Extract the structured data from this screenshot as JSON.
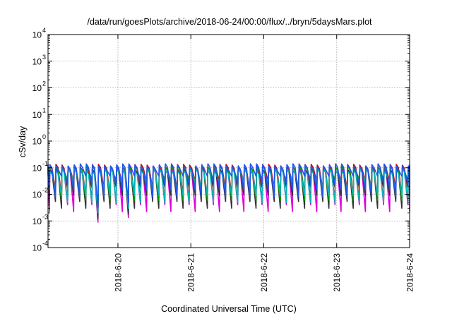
{
  "chart_data": {
    "type": "line",
    "title": "/data/run/goesPlots/archive/2018-06-24/00:00/flux/../bryn/5daysMars.plot",
    "xlabel": "Coordinated Universal Time (UTC)",
    "ylabel": "cSv/day",
    "yscale": "log",
    "ylim": [
      0.0001,
      10000
    ],
    "y_ticks": [
      {
        "base": "10",
        "exp": "-4",
        "value": 0.0001
      },
      {
        "base": "10",
        "exp": "-3",
        "value": 0.001
      },
      {
        "base": "10",
        "exp": "-2",
        "value": 0.01
      },
      {
        "base": "10",
        "exp": "-1",
        "value": 0.1
      },
      {
        "base": "10",
        "exp": "0",
        "value": 1
      },
      {
        "base": "10",
        "exp": "1",
        "value": 10
      },
      {
        "base": "10",
        "exp": "2",
        "value": 100
      },
      {
        "base": "10",
        "exp": "3",
        "value": 1000
      },
      {
        "base": "10",
        "exp": "4",
        "value": 10000
      }
    ],
    "xlim": [
      "2018-06-19 01:00",
      "2018-06-24 00:00"
    ],
    "x_ticks": [
      "2018-6-20",
      "2018-6-21",
      "2018-6-22",
      "2018-6-23",
      "2018-6-24"
    ],
    "grid": true,
    "legend": "none",
    "sawtooth": {
      "cycles_per_day": 12,
      "peak": 0.12,
      "troughs": [
        0.03,
        0.015,
        0.009,
        0.005
      ],
      "dip_times": [
        "2018-06-19 17:45",
        "2018-06-20 02:45"
      ],
      "dip_troughs": [
        0.002,
        0.003
      ]
    },
    "series": [
      {
        "color": "#cc0000",
        "peak_factor": 1.0,
        "trough_factor": 1.0
      },
      {
        "color": "#00a000",
        "peak_factor": 0.85,
        "trough_factor": 1.2
      },
      {
        "color": "#2255ee",
        "peak_factor": 1.05,
        "trough_factor": 1.6
      },
      {
        "color": "#dd00dd",
        "peak_factor": 0.8,
        "trough_factor": 0.45
      },
      {
        "color": "#00b8b8",
        "peak_factor": 0.7,
        "trough_factor": 1.0
      },
      {
        "color": "#333333",
        "peak_factor": 0.75,
        "trough_factor": 0.6
      }
    ]
  }
}
